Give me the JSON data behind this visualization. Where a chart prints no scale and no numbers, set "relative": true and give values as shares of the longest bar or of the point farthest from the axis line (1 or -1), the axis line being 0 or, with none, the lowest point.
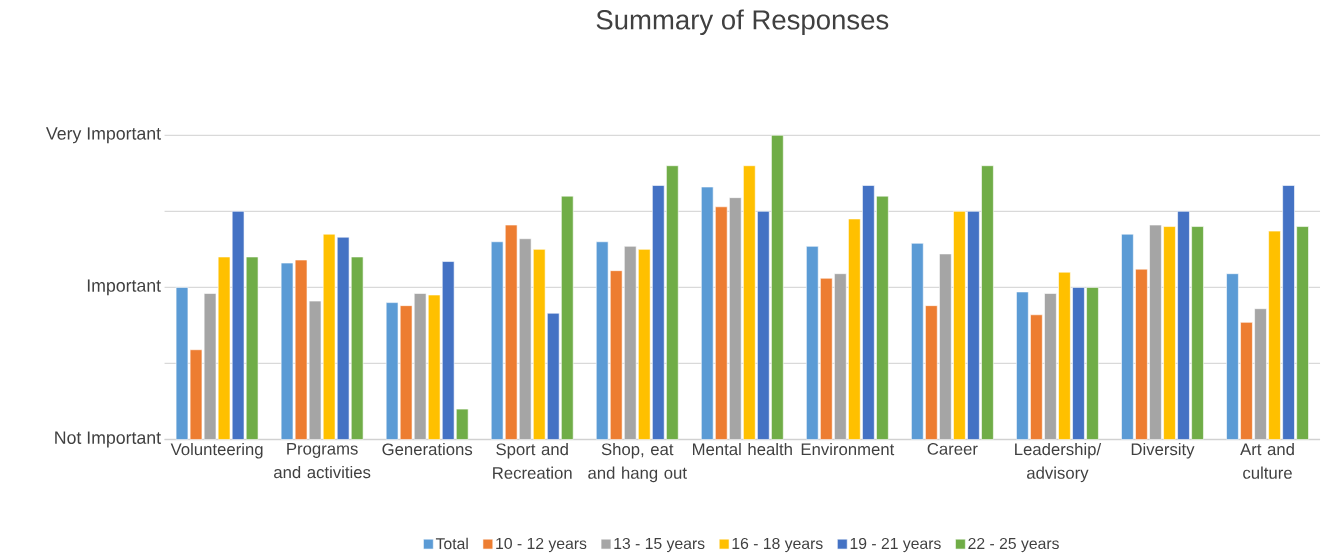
{
  "chart_data": {
    "type": "bar",
    "title": "Summary of Responses",
    "relative": true,
    "categories": [
      "Volunteering",
      "Programs and activities",
      "Generations",
      "Sport and Recreation",
      "Shop, eat and hang out",
      "Mental health",
      "Environment",
      "Career",
      "Leadership/ advisory",
      "Diversity",
      "Art and culture"
    ],
    "series": [
      {
        "name": "Total",
        "color": "#5b9bd5",
        "values": [
          0.5,
          0.58,
          0.45,
          0.65,
          0.65,
          0.83,
          0.635,
          0.645,
          0.485,
          0.675,
          0.545
        ]
      },
      {
        "name": "10 - 12 years",
        "color": "#ed7d31",
        "values": [
          0.295,
          0.59,
          0.44,
          0.705,
          0.555,
          0.765,
          0.53,
          0.44,
          0.41,
          0.56,
          0.385
        ]
      },
      {
        "name": "13 - 15 years",
        "color": "#a5a5a5",
        "values": [
          0.48,
          0.455,
          0.48,
          0.66,
          0.635,
          0.795,
          0.545,
          0.61,
          0.48,
          0.705,
          0.43
        ]
      },
      {
        "name": "16 - 18 years",
        "color": "#ffc000",
        "values": [
          0.6,
          0.675,
          0.475,
          0.625,
          0.625,
          0.9,
          0.725,
          0.75,
          0.55,
          0.7,
          0.685
        ]
      },
      {
        "name": "19 - 21 years",
        "color": "#4472c4",
        "values": [
          0.75,
          0.665,
          0.585,
          0.415,
          0.835,
          0.75,
          0.835,
          0.75,
          0.5,
          0.75,
          0.835
        ]
      },
      {
        "name": "22 - 25 years",
        "color": "#70ad47",
        "values": [
          0.6,
          0.6,
          0.1,
          0.8,
          0.9,
          1,
          0.8,
          0.9,
          0.5,
          0.7,
          0.7
        ]
      }
    ],
    "annotations": [
      "Not Important",
      "Important",
      "Very Important"
    ],
    "grid": "y",
    "legend": "bottom"
  }
}
